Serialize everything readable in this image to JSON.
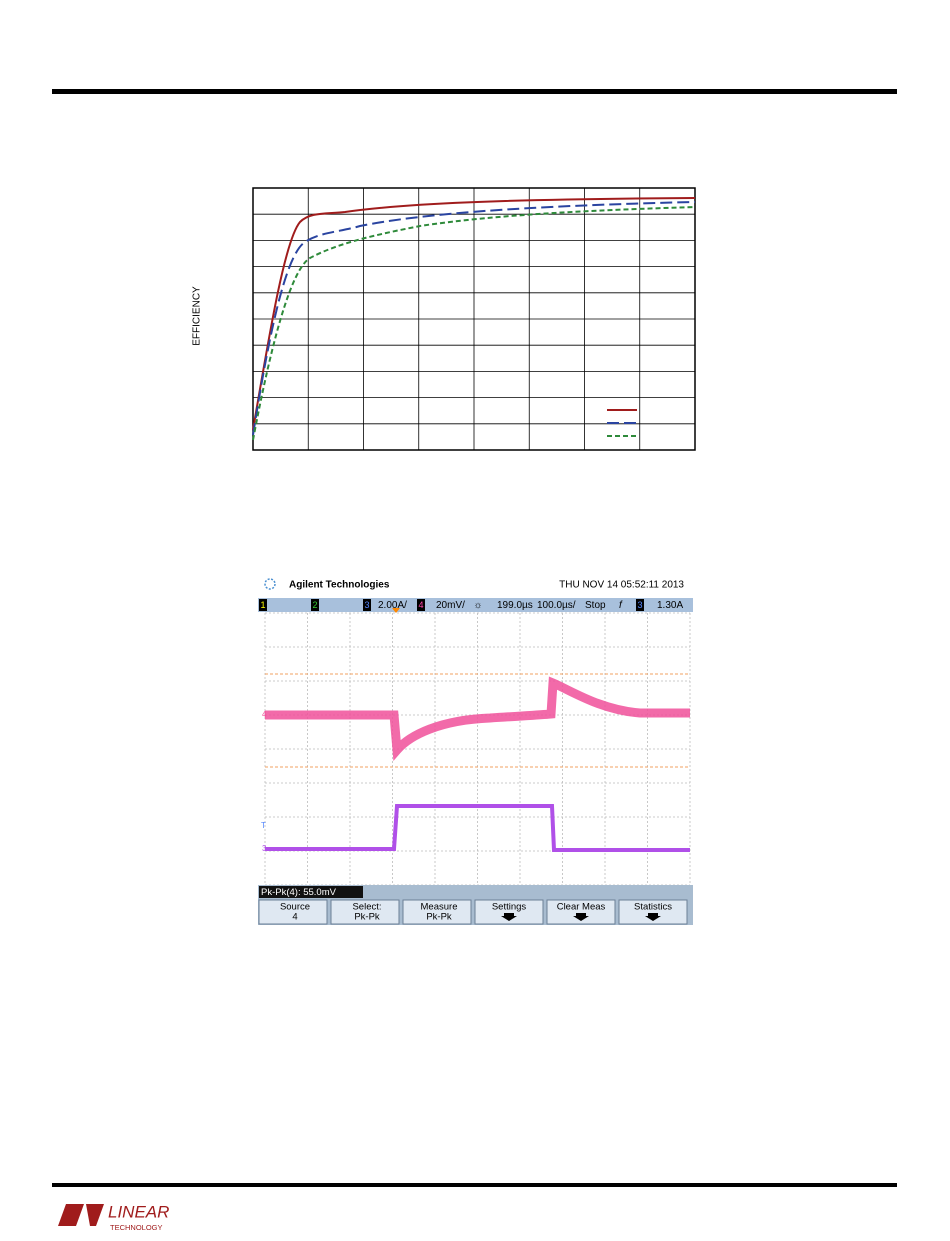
{
  "efficiency_plot": {
    "ylabel": "EFFICIENCY"
  },
  "scope": {
    "brand": "Agilent Technologies",
    "timestamp": "THU NOV 14 05:52:11 2013",
    "status_bar": {
      "ch1": "1",
      "ch2": "2",
      "ch3": "3",
      "ch3_scale": "2.00A/",
      "ch4": "4",
      "ch4_scale": "20mV/",
      "delay": "199.0µs",
      "timebase": "100.0µs/",
      "run_state": "Stop",
      "trigger_edge": "f",
      "trigger_source": "3",
      "trigger_level": "1.30A"
    },
    "markers": {
      "ch4": "4",
      "trigger": "T",
      "ch3": "3"
    },
    "measurement": "Pk-Pk(4): 55.0mV",
    "buttons": [
      {
        "line1": "Source",
        "line2": "4"
      },
      {
        "line1": "Select:",
        "line2": "Pk-Pk"
      },
      {
        "line1": "Measure",
        "line2": "Pk-Pk"
      },
      {
        "line1": "Settings"
      },
      {
        "line1": "Clear Meas"
      },
      {
        "line1": "Statistics"
      }
    ]
  },
  "footer": {
    "logo_main": "LINEAR",
    "logo_sub": "TECHNOLOGY"
  }
}
